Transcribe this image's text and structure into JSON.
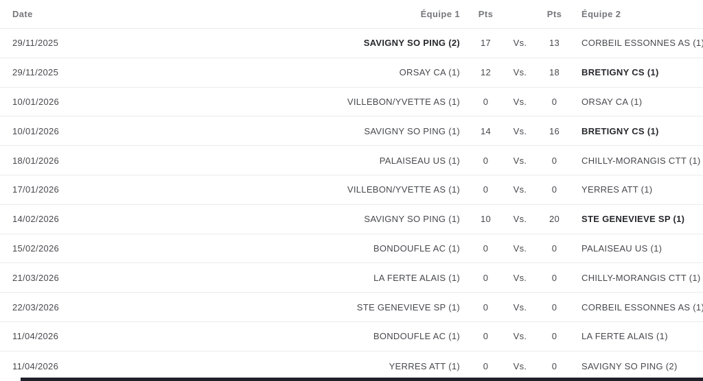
{
  "table": {
    "header": {
      "date": "Date",
      "team1": "Équipe 1",
      "pts1": "Pts",
      "vs": "",
      "pts2": "Pts",
      "team2": "Équipe 2"
    },
    "rows": [
      {
        "date": "29/11/2025",
        "team1": "SAVIGNY SO PING (2)",
        "team1_bold": true,
        "pts1": "17",
        "vs": "Vs.",
        "pts2": "13",
        "team2": "CORBEIL ESSONNES AS (1)",
        "team2_bold": false
      },
      {
        "date": "29/11/2025",
        "team1": "ORSAY CA (1)",
        "team1_bold": false,
        "pts1": "12",
        "vs": "Vs.",
        "pts2": "18",
        "team2": "BRETIGNY CS (1)",
        "team2_bold": true
      },
      {
        "date": "10/01/2026",
        "team1": "VILLEBON/YVETTE AS (1)",
        "team1_bold": false,
        "pts1": "0",
        "vs": "Vs.",
        "pts2": "0",
        "team2": "ORSAY CA (1)",
        "team2_bold": false
      },
      {
        "date": "10/01/2026",
        "team1": "SAVIGNY SO PING (1)",
        "team1_bold": false,
        "pts1": "14",
        "vs": "Vs.",
        "pts2": "16",
        "team2": "BRETIGNY CS (1)",
        "team2_bold": true
      },
      {
        "date": "18/01/2026",
        "team1": "PALAISEAU US (1)",
        "team1_bold": false,
        "pts1": "0",
        "vs": "Vs.",
        "pts2": "0",
        "team2": "CHILLY-MORANGIS CTT (1)",
        "team2_bold": false
      },
      {
        "date": "17/01/2026",
        "team1": "VILLEBON/YVETTE AS (1)",
        "team1_bold": false,
        "pts1": "0",
        "vs": "Vs.",
        "pts2": "0",
        "team2": "YERRES ATT (1)",
        "team2_bold": false
      },
      {
        "date": "14/02/2026",
        "team1": "SAVIGNY SO PING (1)",
        "team1_bold": false,
        "pts1": "10",
        "vs": "Vs.",
        "pts2": "20",
        "team2": "STE GENEVIEVE SP (1)",
        "team2_bold": true
      },
      {
        "date": "15/02/2026",
        "team1": "BONDOUFLE AC (1)",
        "team1_bold": false,
        "pts1": "0",
        "vs": "Vs.",
        "pts2": "0",
        "team2": "PALAISEAU US (1)",
        "team2_bold": false
      },
      {
        "date": "21/03/2026",
        "team1": "LA FERTE ALAIS (1)",
        "team1_bold": false,
        "pts1": "0",
        "vs": "Vs.",
        "pts2": "0",
        "team2": "CHILLY-MORANGIS CTT (1)",
        "team2_bold": false
      },
      {
        "date": "22/03/2026",
        "team1": "STE GENEVIEVE SP (1)",
        "team1_bold": false,
        "pts1": "0",
        "vs": "Vs.",
        "pts2": "0",
        "team2": "CORBEIL ESSONNES AS (1)",
        "team2_bold": false
      },
      {
        "date": "11/04/2026",
        "team1": "BONDOUFLE AC (1)",
        "team1_bold": false,
        "pts1": "0",
        "vs": "Vs.",
        "pts2": "0",
        "team2": "LA FERTE ALAIS (1)",
        "team2_bold": false
      },
      {
        "date": "11/04/2026",
        "team1": "YERRES ATT (1)",
        "team1_bold": false,
        "pts1": "0",
        "vs": "Vs.",
        "pts2": "0",
        "team2": "SAVIGNY SO PING (2)",
        "team2_bold": false
      }
    ]
  },
  "colors": {
    "text_normal": "#47484d",
    "text_bold": "#27282d",
    "header_text": "#76777c",
    "separator": "#ebebec",
    "footer_bar": "#20202b",
    "background": "#ffffff"
  }
}
